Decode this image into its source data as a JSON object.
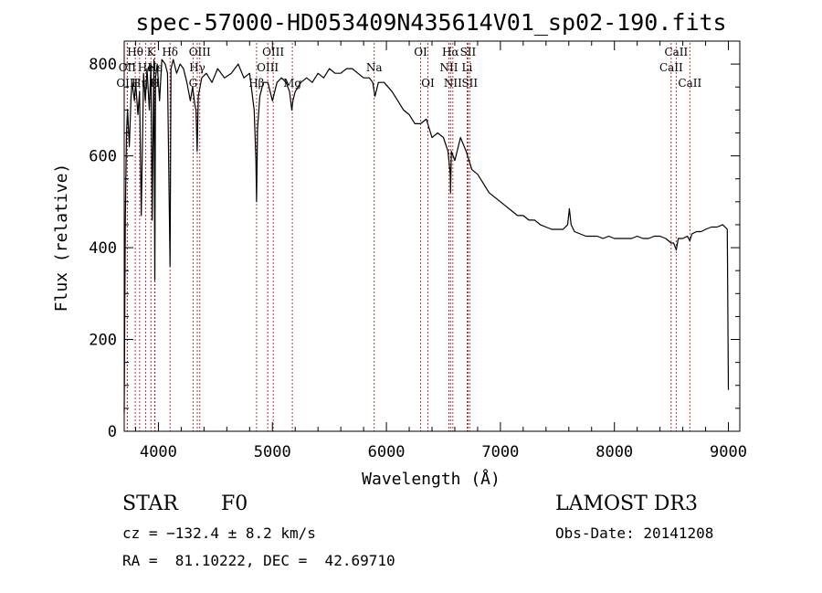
{
  "chart_data": {
    "type": "line",
    "title": "spec-57000-HD053409N435614V01_sp02-190.fits",
    "xlabel": "Wavelength (Å)",
    "ylabel": "Flux (relative)",
    "xlim": [
      3700,
      9100
    ],
    "ylim": [
      0,
      850
    ],
    "x_ticks": [
      4000,
      5000,
      6000,
      7000,
      8000,
      9000
    ],
    "y_ticks": [
      0,
      200,
      400,
      600,
      800
    ],
    "series": [
      {
        "name": "flux",
        "color": "#000000",
        "x": [
          3700,
          3710,
          3720,
          3730,
          3745,
          3760,
          3770,
          3790,
          3800,
          3820,
          3835,
          3850,
          3870,
          3885,
          3900,
          3920,
          3935,
          3945,
          3960,
          3968,
          3975,
          3990,
          4010,
          4030,
          4060,
          4080,
          4102,
          4110,
          4130,
          4160,
          4190,
          4220,
          4250,
          4280,
          4300,
          4320,
          4330,
          4340,
          4350,
          4380,
          4420,
          4470,
          4520,
          4580,
          4640,
          4700,
          4750,
          4800,
          4840,
          4855,
          4861,
          4870,
          4890,
          4920,
          4960,
          5000,
          5040,
          5080,
          5120,
          5150,
          5170,
          5180,
          5200,
          5250,
          5300,
          5350,
          5400,
          5450,
          5500,
          5550,
          5600,
          5650,
          5700,
          5750,
          5800,
          5850,
          5880,
          5893,
          5900,
          5930,
          5980,
          6050,
          6100,
          6150,
          6200,
          6250,
          6300,
          6350,
          6400,
          6450,
          6500,
          6540,
          6560,
          6563,
          6570,
          6600,
          6650,
          6700,
          6750,
          6800,
          6850,
          6900,
          6950,
          7000,
          7050,
          7100,
          7150,
          7200,
          7250,
          7300,
          7350,
          7400,
          7450,
          7500,
          7550,
          7590,
          7605,
          7620,
          7650,
          7700,
          7750,
          7800,
          7850,
          7900,
          7950,
          8000,
          8050,
          8100,
          8150,
          8200,
          8250,
          8300,
          8350,
          8400,
          8450,
          8498,
          8520,
          8542,
          8560,
          8600,
          8640,
          8662,
          8680,
          8720,
          8760,
          8800,
          8850,
          8900,
          8950,
          8990,
          9000
        ],
        "values": [
          40,
          460,
          650,
          700,
          620,
          730,
          760,
          720,
          760,
          690,
          740,
          470,
          780,
          720,
          790,
          700,
          800,
          460,
          810,
          330,
          770,
          800,
          720,
          810,
          800,
          780,
          360,
          790,
          810,
          780,
          800,
          790,
          760,
          720,
          750,
          710,
          700,
          610,
          730,
          770,
          780,
          760,
          790,
          770,
          780,
          800,
          770,
          780,
          700,
          590,
          500,
          660,
          730,
          760,
          760,
          720,
          760,
          770,
          760,
          740,
          700,
          720,
          740,
          760,
          770,
          760,
          780,
          770,
          790,
          780,
          780,
          790,
          790,
          780,
          770,
          770,
          760,
          740,
          730,
          760,
          760,
          740,
          720,
          700,
          690,
          670,
          670,
          680,
          640,
          650,
          640,
          610,
          560,
          520,
          610,
          590,
          640,
          610,
          570,
          560,
          540,
          520,
          510,
          500,
          490,
          480,
          470,
          470,
          460,
          460,
          450,
          445,
          440,
          440,
          440,
          450,
          485,
          450,
          435,
          430,
          425,
          425,
          425,
          420,
          425,
          420,
          420,
          420,
          420,
          425,
          420,
          420,
          425,
          425,
          420,
          410,
          410,
          395,
          420,
          420,
          425,
          415,
          430,
          435,
          435,
          440,
          445,
          445,
          450,
          440,
          90
        ],
        "mark_index": 0
      }
    ],
    "line_markers": [
      {
        "label": "Hθ",
        "x": 3797,
        "row": 1
      },
      {
        "label": "OII",
        "x": 3727,
        "row": 2
      },
      {
        "label": "OIII",
        "x": 3727,
        "row": 3
      },
      {
        "label": "K",
        "x": 3934,
        "row": 1
      },
      {
        "label": "He",
        "x": 3889,
        "row": 2
      },
      {
        "label": "Hη",
        "x": 3835,
        "row": 3
      },
      {
        "label": "Hε",
        "x": 3970,
        "row": 2
      },
      {
        "label": "H",
        "x": 3968,
        "row": 3
      },
      {
        "label": "Hδ",
        "x": 4102,
        "row": 1
      },
      {
        "label": "OIII",
        "x": 4363,
        "row": 1
      },
      {
        "label": "Hγ",
        "x": 4341,
        "row": 2
      },
      {
        "label": "G",
        "x": 4304,
        "row": 3
      },
      {
        "label": "Hβ",
        "x": 4861,
        "row": 3
      },
      {
        "label": "OIII",
        "x": 5007,
        "row": 1
      },
      {
        "label": "OIII",
        "x": 4959,
        "row": 2
      },
      {
        "label": "Mg",
        "x": 5175,
        "row": 3
      },
      {
        "label": "Na",
        "x": 5893,
        "row": 2
      },
      {
        "label": "OI",
        "x": 6300,
        "row": 1
      },
      {
        "label": "OI",
        "x": 6364,
        "row": 3
      },
      {
        "label": "Hα",
        "x": 6563,
        "row": 1
      },
      {
        "label": "NII",
        "x": 6548,
        "row": 2
      },
      {
        "label": "NII",
        "x": 6583,
        "row": 3
      },
      {
        "label": "SII",
        "x": 6716,
        "row": 1
      },
      {
        "label": "Li",
        "x": 6708,
        "row": 2
      },
      {
        "label": "SII",
        "x": 6731,
        "row": 3
      },
      {
        "label": "CaII",
        "x": 8542,
        "row": 1
      },
      {
        "label": "CaII",
        "x": 8498,
        "row": 2
      },
      {
        "label": "CaII",
        "x": 8662,
        "row": 3
      }
    ]
  },
  "info": {
    "object_class": "STAR",
    "subclass": "F0",
    "survey": "LAMOST DR3",
    "redshift": "cz = −132.4 ± 8.2 km/s",
    "obs_date": "Obs-Date: 20141208",
    "coords": "RA =  81.10222, DEC =  42.69710"
  }
}
